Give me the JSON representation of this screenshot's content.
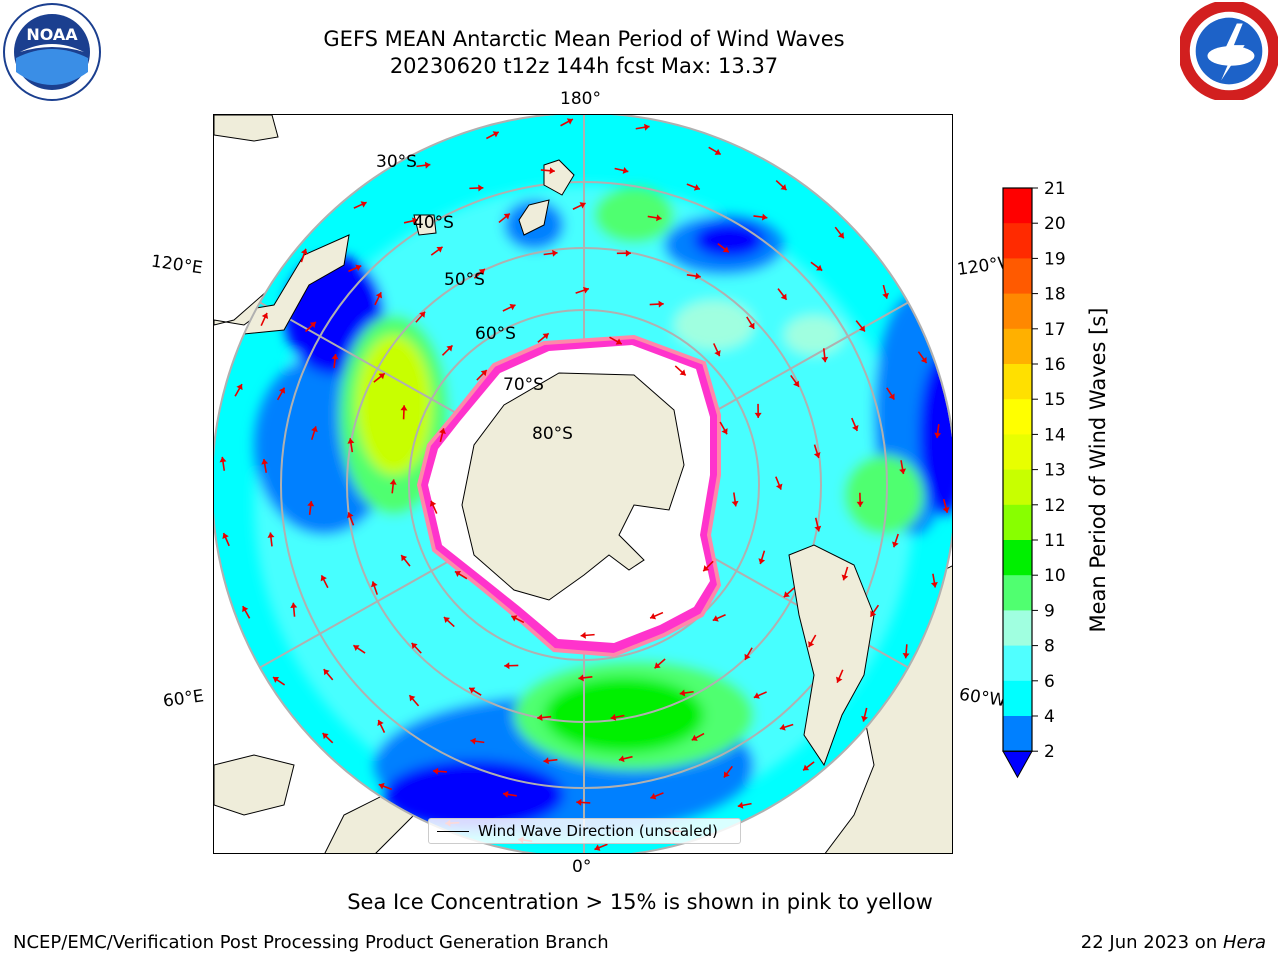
{
  "title": {
    "line1": "GEFS MEAN Antarctic Mean Period of Wind Waves",
    "line2": "20230620 t12z 144h fcst   Max: 13.37"
  },
  "logos": {
    "left": "noaa-logo",
    "left_text": "NOAA",
    "right": "national-weather-service-logo"
  },
  "map": {
    "projection": "south-polar-stereographic",
    "lon_labels": {
      "top": "180°",
      "bottom": "0°",
      "upper_left": "120°E",
      "upper_right": "120°W",
      "lower_left": "60°E",
      "lower_right": "60°W"
    },
    "lat_labels": [
      "30°S",
      "40°S",
      "50°S",
      "60°S",
      "70°S",
      "80°S"
    ],
    "colors": {
      "land": "#efedda",
      "ocean_base": "#00ffff",
      "sea_ice_edge": "#ff33cc",
      "arrow": "#e80000",
      "grid": "#b0b0b0"
    }
  },
  "legend": {
    "text": "Wind Wave Direction (unscaled)"
  },
  "colorbar": {
    "label": "Mean Period of Wind Waves [s]",
    "ticks": [
      "21",
      "20",
      "19",
      "18",
      "17",
      "16",
      "15",
      "14",
      "13",
      "12",
      "11",
      "10",
      "9",
      "8",
      "6",
      "4",
      "2"
    ],
    "colors": [
      "#ff0000",
      "#ff2a00",
      "#ff5a00",
      "#ff8800",
      "#ffb000",
      "#ffe000",
      "#ffff00",
      "#e8ff00",
      "#c8ff00",
      "#88ff00",
      "#00f000",
      "#50ff70",
      "#a0ffe0",
      "#50ffff",
      "#00ffff",
      "#0080ff"
    ],
    "extend_color": "#0000ff"
  },
  "notes": {
    "sea_ice": "Sea Ice Concentration > 15% is shown in pink to yellow"
  },
  "footer": {
    "left": "NCEP/EMC/Verification Post Processing Product Generation Branch",
    "right_date": "22 Jun 2023 on ",
    "right_host": "Hera"
  }
}
